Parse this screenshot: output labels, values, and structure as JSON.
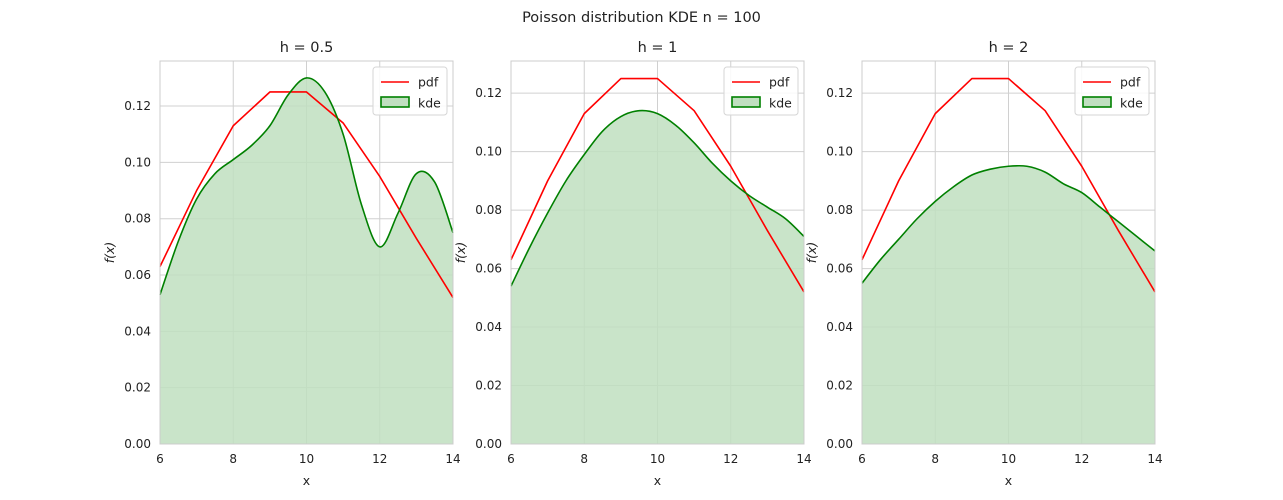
{
  "figure": {
    "suptitle": "Poisson distribution KDE n = 100"
  },
  "colors": {
    "pdf": "#ff0000",
    "kde_line": "#008000",
    "kde_fill": "#c0dfc0",
    "grid": "#d0d0d0",
    "spine": "#cccccc"
  },
  "chart_data": [
    {
      "type": "line",
      "title": "h = 0.5",
      "xlabel": "x",
      "ylabel": "f(x)",
      "xlim": [
        6,
        14
      ],
      "ylim": [
        0,
        0.136
      ],
      "xticks": [
        "6",
        "8",
        "10",
        "12",
        "14"
      ],
      "yticks": [
        "0.00",
        "0.02",
        "0.04",
        "0.06",
        "0.08",
        "0.10",
        "0.12"
      ],
      "grid": true,
      "legend": {
        "placement": "top-right",
        "entries": [
          "pdf",
          "kde"
        ]
      },
      "series": [
        {
          "name": "pdf",
          "x": [
            6,
            7,
            8,
            9,
            10,
            11,
            12,
            13,
            14
          ],
          "y": [
            0.063,
            0.09,
            0.113,
            0.125,
            0.125,
            0.114,
            0.095,
            0.073,
            0.052
          ]
        },
        {
          "name": "kde",
          "filled": true,
          "x": [
            6,
            6.5,
            7,
            7.5,
            8,
            8.5,
            9,
            9.5,
            10,
            10.5,
            11,
            11.5,
            12,
            12.5,
            13,
            13.5,
            14
          ],
          "y": [
            0.053,
            0.072,
            0.087,
            0.096,
            0.101,
            0.106,
            0.113,
            0.124,
            0.13,
            0.125,
            0.11,
            0.085,
            0.07,
            0.082,
            0.096,
            0.093,
            0.075
          ]
        }
      ]
    },
    {
      "type": "line",
      "title": "h = 1",
      "xlabel": "x",
      "ylabel": "f(x)",
      "xlim": [
        6,
        14
      ],
      "ylim": [
        0,
        0.131
      ],
      "xticks": [
        "6",
        "8",
        "10",
        "12",
        "14"
      ],
      "yticks": [
        "0.00",
        "0.02",
        "0.04",
        "0.06",
        "0.08",
        "0.10",
        "0.12"
      ],
      "grid": true,
      "legend": {
        "placement": "top-right",
        "entries": [
          "pdf",
          "kde"
        ]
      },
      "series": [
        {
          "name": "pdf",
          "x": [
            6,
            7,
            8,
            9,
            10,
            11,
            12,
            13,
            14
          ],
          "y": [
            0.063,
            0.09,
            0.113,
            0.125,
            0.125,
            0.114,
            0.095,
            0.073,
            0.052
          ]
        },
        {
          "name": "kde",
          "filled": true,
          "x": [
            6,
            6.5,
            7,
            7.5,
            8,
            8.5,
            9,
            9.5,
            10,
            10.5,
            11,
            11.5,
            12,
            12.5,
            13,
            13.5,
            14
          ],
          "y": [
            0.054,
            0.067,
            0.079,
            0.09,
            0.099,
            0.107,
            0.112,
            0.114,
            0.113,
            0.109,
            0.103,
            0.096,
            0.09,
            0.085,
            0.081,
            0.077,
            0.071
          ]
        }
      ]
    },
    {
      "type": "line",
      "title": "h = 2",
      "xlabel": "x",
      "ylabel": "f(x)",
      "xlim": [
        6,
        14
      ],
      "ylim": [
        0,
        0.131
      ],
      "xticks": [
        "6",
        "8",
        "10",
        "12",
        "14"
      ],
      "yticks": [
        "0.00",
        "0.02",
        "0.04",
        "0.06",
        "0.08",
        "0.10",
        "0.12"
      ],
      "grid": true,
      "legend": {
        "placement": "top-right",
        "entries": [
          "pdf",
          "kde"
        ]
      },
      "series": [
        {
          "name": "pdf",
          "x": [
            6,
            7,
            8,
            9,
            10,
            11,
            12,
            13,
            14
          ],
          "y": [
            0.063,
            0.09,
            0.113,
            0.125,
            0.125,
            0.114,
            0.095,
            0.073,
            0.052
          ]
        },
        {
          "name": "kde",
          "filled": true,
          "x": [
            6,
            6.5,
            7,
            7.5,
            8,
            8.5,
            9,
            9.5,
            10,
            10.5,
            11,
            11.5,
            12,
            12.5,
            13,
            13.5,
            14
          ],
          "y": [
            0.055,
            0.063,
            0.07,
            0.077,
            0.083,
            0.088,
            0.092,
            0.094,
            0.095,
            0.095,
            0.093,
            0.089,
            0.086,
            0.081,
            0.076,
            0.071,
            0.066
          ]
        }
      ]
    }
  ]
}
